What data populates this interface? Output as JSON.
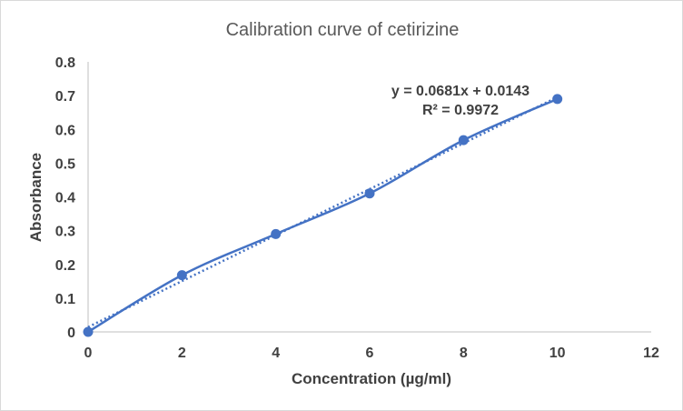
{
  "chart_data": {
    "type": "scatter",
    "title": "Calibration curve of cetirizine",
    "xlabel": "Concentration (µg/ml)",
    "ylabel": "Absorbance",
    "xlim": [
      0,
      12
    ],
    "ylim": [
      0,
      0.8
    ],
    "x_ticks": [
      0,
      2,
      4,
      6,
      8,
      10,
      12
    ],
    "y_ticks": [
      0,
      0.1,
      0.2,
      0.3,
      0.4,
      0.5,
      0.6,
      0.7,
      0.8
    ],
    "grid": false,
    "series": [
      {
        "x": [
          0,
          2,
          4,
          6,
          8,
          10
        ],
        "y": [
          0,
          0.168,
          0.29,
          0.41,
          0.568,
          0.69
        ],
        "color": "#4472c4",
        "smoothed_line": true
      }
    ],
    "trendline": {
      "kind": "linear",
      "slope": 0.0681,
      "intercept": 0.0143,
      "style": "dotted",
      "color": "#4472c4",
      "equation_label": "y = 0.0681x + 0.0143",
      "r2_label": "R² = 0.9972"
    }
  }
}
